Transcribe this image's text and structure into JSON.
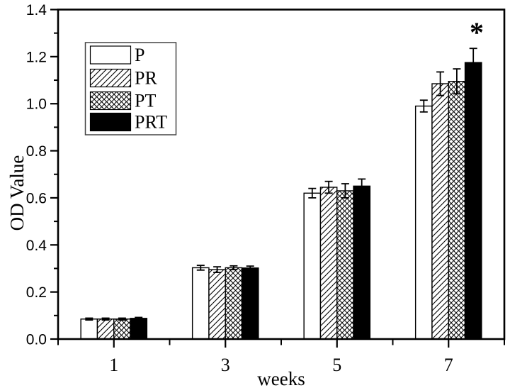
{
  "chart_data": {
    "type": "bar",
    "title": "",
    "xlabel": "weeks",
    "ylabel": "OD Value",
    "categories": [
      "1",
      "3",
      "5",
      "7"
    ],
    "ylim": [
      0,
      1.4
    ],
    "ytick_step": 0.2,
    "yticks": [
      "0.0",
      "0.2",
      "0.4",
      "0.6",
      "0.8",
      "1.0",
      "1.2",
      "1.4"
    ],
    "yticks_minor": [
      0.1,
      0.3,
      0.5,
      0.7,
      0.9,
      1.1,
      1.3
    ],
    "grid": false,
    "legend_position": "upper-left-inside",
    "series": [
      {
        "name": "P",
        "pattern": "plain-white",
        "values": [
          0.085,
          0.303,
          0.62,
          0.99
        ],
        "errors": [
          0.004,
          0.01,
          0.02,
          0.025
        ]
      },
      {
        "name": "PR",
        "pattern": "diagonal-hatch",
        "values": [
          0.085,
          0.295,
          0.645,
          1.085
        ],
        "errors": [
          0.004,
          0.012,
          0.025,
          0.05
        ]
      },
      {
        "name": "PT",
        "pattern": "cross-hatch",
        "values": [
          0.085,
          0.303,
          0.63,
          1.095
        ],
        "errors": [
          0.004,
          0.008,
          0.03,
          0.053
        ]
      },
      {
        "name": "PRT",
        "pattern": "solid-black",
        "values": [
          0.088,
          0.302,
          0.65,
          1.175
        ],
        "errors": [
          0.004,
          0.008,
          0.03,
          0.06
        ]
      }
    ],
    "annotations": [
      {
        "text": "*",
        "target_series": "PRT",
        "target_category": "7",
        "meaning": "significance-marker"
      }
    ],
    "colors": {
      "foreground": "#000000",
      "background": "#ffffff",
      "bar_stroke": "#000000",
      "solid_fill": "#000000",
      "legend_border": "#444444"
    }
  }
}
